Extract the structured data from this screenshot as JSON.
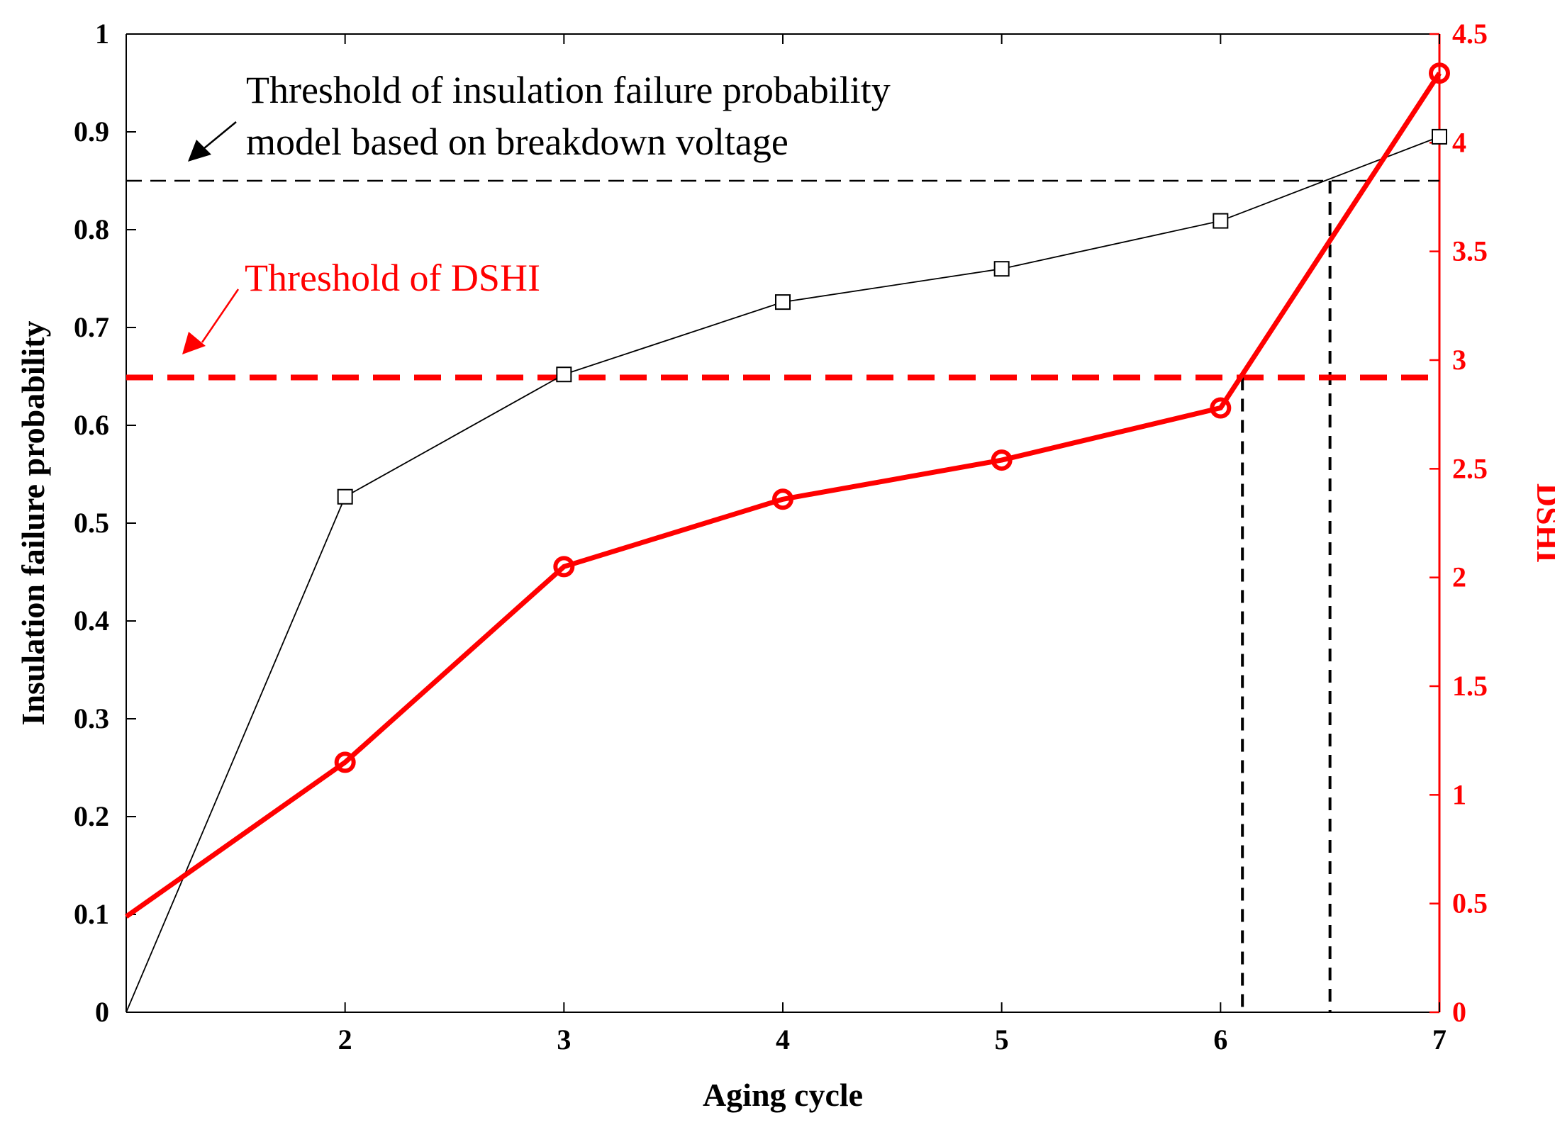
{
  "chart_data": {
    "type": "line",
    "title": "",
    "xlabel": "Aging cycle",
    "ylabel_left": "Insulation failure probability",
    "ylabel_right": "DSHI",
    "xlim": [
      1,
      7
    ],
    "ylim_left": [
      0,
      1
    ],
    "ylim_right": [
      0,
      4.5
    ],
    "x_ticks": [
      "2",
      "3",
      "4",
      "5",
      "6",
      "7"
    ],
    "y_left_ticks": [
      "0",
      "0.1",
      "0.2",
      "0.3",
      "0.4",
      "0.5",
      "0.6",
      "0.7",
      "0.8",
      "0.9",
      "1"
    ],
    "y_right_ticks": [
      "0",
      "0.5",
      "1",
      "1.5",
      "2",
      "2.5",
      "3",
      "3.5",
      "4",
      "4.5"
    ],
    "grid": false,
    "series": [
      {
        "name": "Insulation failure probability",
        "axis": "left",
        "color": "#000000",
        "marker": "square",
        "x": [
          1,
          2,
          3,
          4,
          5,
          6,
          7
        ],
        "values": [
          0.0,
          0.527,
          0.652,
          0.726,
          0.76,
          0.809,
          0.895
        ]
      },
      {
        "name": "DSHI",
        "axis": "right",
        "color": "#ff0000",
        "marker": "circle",
        "x": [
          1,
          2,
          3,
          4,
          5,
          6,
          7
        ],
        "values": [
          0.44,
          1.15,
          2.05,
          2.36,
          2.54,
          2.78,
          4.32
        ]
      }
    ],
    "thresholds": [
      {
        "axis": "left",
        "value": 0.85,
        "color": "#000000",
        "crossing_x": 6.5
      },
      {
        "axis": "right",
        "value": 2.92,
        "color": "#ff0000",
        "crossing_x": 6.1
      }
    ],
    "annotations": [
      {
        "lines": [
          "Threshold of insulation failure probability",
          "model based on breakdown voltage"
        ],
        "color": "#000000"
      },
      {
        "lines": [
          "Threshold of DSHI"
        ],
        "color": "#ff0000"
      }
    ]
  }
}
